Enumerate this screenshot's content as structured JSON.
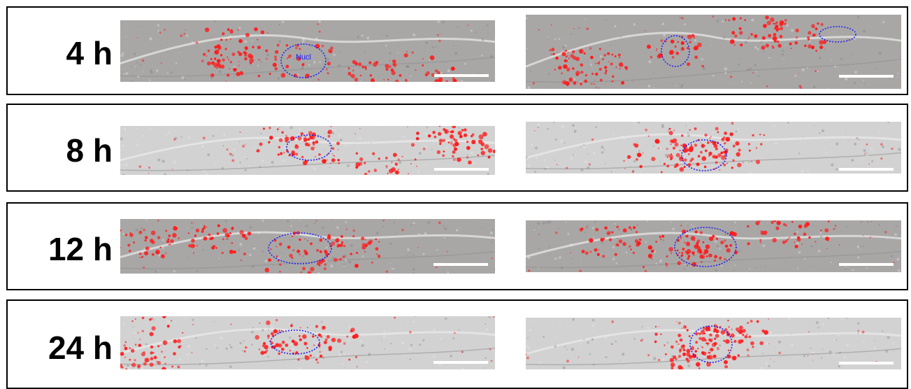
{
  "rows": [
    {
      "label": "4 h",
      "tone": "dark"
    },
    {
      "label": "8 h",
      "tone": "light"
    },
    {
      "label": "12 h",
      "tone": "dark"
    },
    {
      "label": "24 h",
      "tone": "light"
    }
  ],
  "nucleus_label": "Nucl",
  "colors": {
    "border": "#000000",
    "signal": "#ff1a1a",
    "nucleus_outline": "#2222ee",
    "scale_bar": "#ffffff",
    "bg_dark": "#a9a7a6",
    "bg_light": "#d2d2d2"
  }
}
